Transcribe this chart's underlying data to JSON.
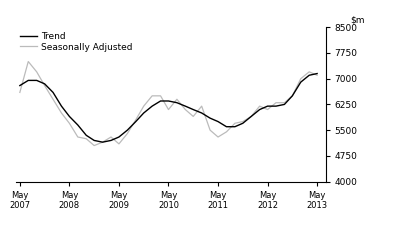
{
  "ylim": [
    4000,
    8500
  ],
  "yticks": [
    4000,
    4750,
    5500,
    6250,
    7000,
    7750,
    8500
  ],
  "xtick_labels": [
    "May\n2007",
    "May\n2008",
    "May\n2009",
    "May\n2010",
    "May\n2011",
    "May\n2012",
    "May\n2013"
  ],
  "legend_entries": [
    "Trend",
    "Seasonally Adjusted"
  ],
  "trend_color": "#000000",
  "seasonal_color": "#bbbbbb",
  "background_color": "#ffffff",
  "trend_x": [
    2007.33,
    2007.5,
    2007.67,
    2007.83,
    2008.0,
    2008.17,
    2008.33,
    2008.5,
    2008.67,
    2008.83,
    2009.0,
    2009.17,
    2009.33,
    2009.5,
    2009.67,
    2009.83,
    2010.0,
    2010.17,
    2010.33,
    2010.5,
    2010.67,
    2010.83,
    2011.0,
    2011.17,
    2011.33,
    2011.5,
    2011.67,
    2011.83,
    2012.0,
    2012.17,
    2012.33,
    2012.5,
    2012.67,
    2012.83,
    2013.0,
    2013.17,
    2013.33
  ],
  "trend_y": [
    6800,
    6950,
    6950,
    6850,
    6600,
    6200,
    5900,
    5650,
    5350,
    5200,
    5150,
    5200,
    5300,
    5500,
    5750,
    6000,
    6200,
    6350,
    6350,
    6300,
    6200,
    6100,
    6000,
    5850,
    5750,
    5600,
    5600,
    5700,
    5900,
    6100,
    6200,
    6200,
    6250,
    6500,
    6900,
    7100,
    7150
  ],
  "seasonal_x": [
    2007.33,
    2007.5,
    2007.67,
    2007.83,
    2008.0,
    2008.17,
    2008.33,
    2008.5,
    2008.67,
    2008.83,
    2009.0,
    2009.17,
    2009.33,
    2009.5,
    2009.67,
    2009.83,
    2010.0,
    2010.17,
    2010.33,
    2010.5,
    2010.67,
    2010.83,
    2011.0,
    2011.17,
    2011.33,
    2011.5,
    2011.67,
    2011.83,
    2012.0,
    2012.17,
    2012.33,
    2012.5,
    2012.67,
    2012.83,
    2013.0,
    2013.17,
    2013.33
  ],
  "seasonal_y": [
    6600,
    7500,
    7200,
    6800,
    6400,
    6000,
    5700,
    5300,
    5250,
    5050,
    5150,
    5300,
    5100,
    5400,
    5800,
    6200,
    6500,
    6500,
    6100,
    6400,
    6100,
    5900,
    6200,
    5500,
    5300,
    5450,
    5700,
    5750,
    5900,
    6200,
    6100,
    6300,
    6300,
    6500,
    7000,
    7200,
    7100
  ]
}
